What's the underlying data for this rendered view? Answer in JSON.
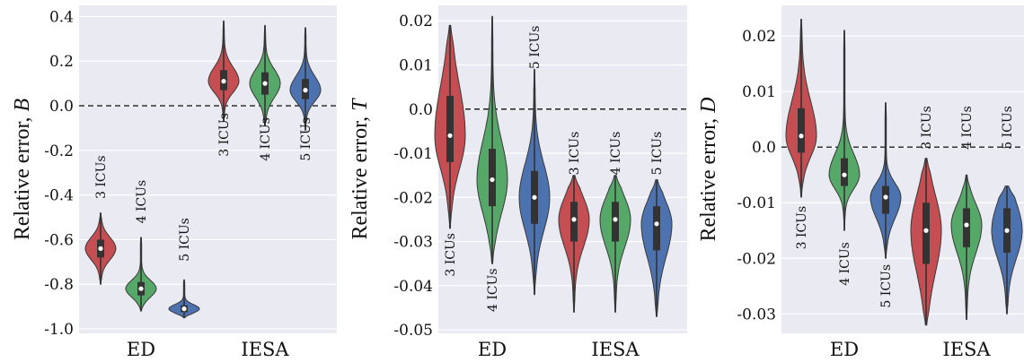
{
  "chart_data": [
    {
      "type": "violin",
      "ylabel": "Relative error, ",
      "ylabel_var": "B",
      "ylim": [
        -1.02,
        0.45
      ],
      "yticks": [
        0.4,
        0.2,
        0.0,
        -0.2,
        -0.4,
        -0.6,
        -0.8,
        -1.0
      ],
      "ytick_labels": [
        "0.4",
        "0.2",
        "0.0",
        "-0.2",
        "-0.4",
        "-0.6",
        "-0.8",
        "-1.0"
      ],
      "zero_line": true,
      "grid": true,
      "categories": [
        "ED",
        "IESA"
      ],
      "violins": [
        {
          "category": "ED",
          "label": "3 ICUs",
          "color": "#c44e52",
          "min": -0.8,
          "q1": -0.68,
          "median": -0.64,
          "q3": -0.6,
          "max": -0.48,
          "label_value": -0.32
        },
        {
          "category": "ED",
          "label": "4 ICUs",
          "color": "#55a868",
          "min": -0.92,
          "q1": -0.85,
          "median": -0.82,
          "q3": -0.79,
          "max": -0.59,
          "label_value": -0.43
        },
        {
          "category": "ED",
          "label": "5 ICUs",
          "color": "#4c72b0",
          "min": -0.95,
          "q1": -0.925,
          "median": -0.91,
          "q3": -0.895,
          "max": -0.78,
          "label_value": -0.6
        },
        {
          "category": "IESA",
          "label": "3 ICUs",
          "color": "#c44e52",
          "min": -0.07,
          "q1": 0.07,
          "median": 0.11,
          "q3": 0.16,
          "max": 0.38,
          "label_value": -0.13
        },
        {
          "category": "IESA",
          "label": "4 ICUs",
          "color": "#55a868",
          "min": -0.09,
          "q1": 0.05,
          "median": 0.1,
          "q3": 0.15,
          "max": 0.36,
          "label_value": -0.15
        },
        {
          "category": "IESA",
          "label": "5 ICUs",
          "color": "#4c72b0",
          "min": -0.11,
          "q1": 0.03,
          "median": 0.07,
          "q3": 0.12,
          "max": 0.35,
          "label_value": -0.15
        }
      ]
    },
    {
      "type": "violin",
      "ylabel": "Relative error, ",
      "ylabel_var": "T",
      "ylim": [
        -0.0508,
        0.0235
      ],
      "yticks": [
        0.02,
        0.01,
        0.0,
        -0.01,
        -0.02,
        -0.03,
        -0.04,
        -0.05
      ],
      "ytick_labels": [
        "0.02",
        "0.01",
        "0.0",
        "-0.01",
        "-0.02",
        "-0.03",
        "-0.04",
        "-0.05"
      ],
      "zero_line": true,
      "grid": true,
      "categories": [
        "ED",
        "IESA"
      ],
      "violins": [
        {
          "category": "ED",
          "label": "3 ICUs",
          "color": "#c44e52",
          "min": -0.027,
          "q1": -0.012,
          "median": -0.006,
          "q3": 0.003,
          "max": 0.019,
          "label_value": -0.033
        },
        {
          "category": "ED",
          "label": "4 ICUs",
          "color": "#55a868",
          "min": -0.035,
          "q1": -0.022,
          "median": -0.016,
          "q3": -0.009,
          "max": 0.021,
          "label_value": -0.041
        },
        {
          "category": "ED",
          "label": "5 ICUs",
          "color": "#4c72b0",
          "min": -0.042,
          "q1": -0.026,
          "median": -0.02,
          "q3": -0.014,
          "max": 0.009,
          "label_value": 0.014
        },
        {
          "category": "IESA",
          "label": "3 ICUs",
          "color": "#c44e52",
          "min": -0.046,
          "q1": -0.03,
          "median": -0.025,
          "q3": -0.021,
          "max": -0.015,
          "label_value": -0.01
        },
        {
          "category": "IESA",
          "label": "4 ICUs",
          "color": "#55a868",
          "min": -0.046,
          "q1": -0.03,
          "median": -0.025,
          "q3": -0.021,
          "max": -0.015,
          "label_value": -0.01
        },
        {
          "category": "IESA",
          "label": "5 ICUs",
          "color": "#4c72b0",
          "min": -0.047,
          "q1": -0.032,
          "median": -0.026,
          "q3": -0.022,
          "max": -0.016,
          "label_value": -0.01
        }
      ]
    },
    {
      "type": "violin",
      "ylabel": "Relative error, ",
      "ylabel_var": "D",
      "ylim": [
        -0.0335,
        0.0255
      ],
      "yticks": [
        0.02,
        0.01,
        0.0,
        -0.01,
        -0.02,
        -0.03
      ],
      "ytick_labels": [
        "0.02",
        "0.01",
        "0.0",
        "-0.01",
        "-0.02",
        "-0.03"
      ],
      "zero_line": true,
      "grid": true,
      "categories": [
        "ED",
        "IESA"
      ],
      "violins": [
        {
          "category": "ED",
          "label": "3 ICUs",
          "color": "#c44e52",
          "min": -0.009,
          "q1": -0.001,
          "median": 0.002,
          "q3": 0.007,
          "max": 0.023,
          "label_value": -0.0145
        },
        {
          "category": "ED",
          "label": "4 ICUs",
          "color": "#55a868",
          "min": -0.015,
          "q1": -0.007,
          "median": -0.005,
          "q3": -0.002,
          "max": 0.021,
          "label_value": -0.021
        },
        {
          "category": "ED",
          "label": "5 ICUs",
          "color": "#4c72b0",
          "min": -0.02,
          "q1": -0.012,
          "median": -0.009,
          "q3": -0.007,
          "max": 0.008,
          "label_value": -0.025
        },
        {
          "category": "IESA",
          "label": "3 ICUs",
          "color": "#c44e52",
          "min": -0.032,
          "q1": -0.021,
          "median": -0.015,
          "q3": -0.01,
          "max": -0.002,
          "label_value": 0.0035
        },
        {
          "category": "IESA",
          "label": "4 ICUs",
          "color": "#55a868",
          "min": -0.031,
          "q1": -0.018,
          "median": -0.014,
          "q3": -0.011,
          "max": -0.005,
          "label_value": 0.0035
        },
        {
          "category": "IESA",
          "label": "5 ICUs",
          "color": "#4c72b0",
          "min": -0.03,
          "q1": -0.019,
          "median": -0.015,
          "q3": -0.011,
          "max": -0.007,
          "label_value": 0.0035
        }
      ]
    }
  ]
}
